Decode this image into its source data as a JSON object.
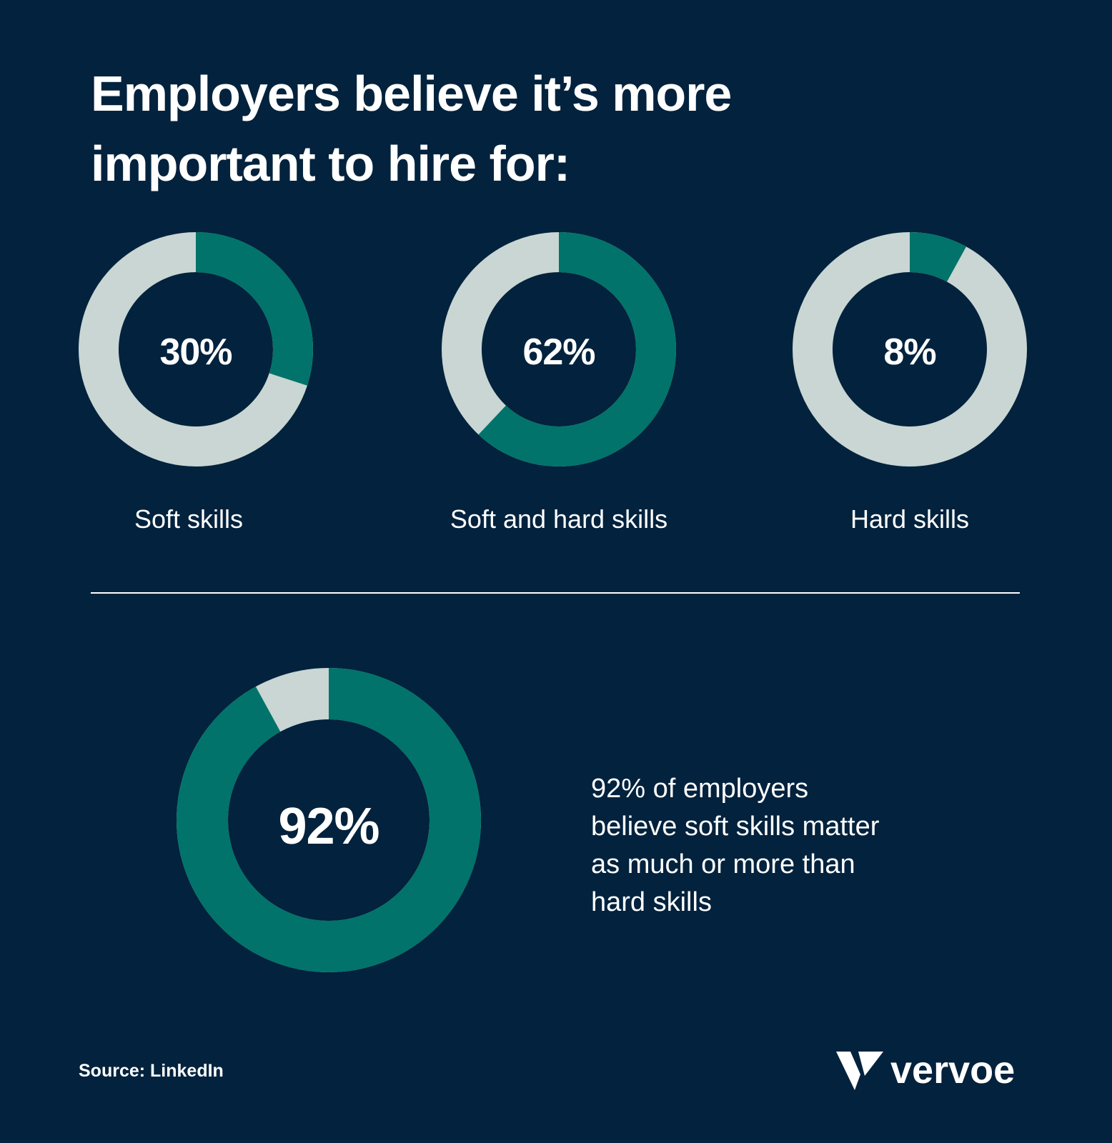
{
  "title": {
    "line1": "Employers believe it’s more",
    "line2": "important to hire for:"
  },
  "colors": {
    "background": "#02223d",
    "accent": "#01736a",
    "track": "#c9d6d3",
    "text": "#ffffff"
  },
  "chart_data": [
    {
      "type": "pie",
      "style": "donut",
      "label": "Soft skills",
      "value": 30,
      "value_text": "30%"
    },
    {
      "type": "pie",
      "style": "donut",
      "label": "Soft and hard skills",
      "value": 62,
      "value_text": "62%"
    },
    {
      "type": "pie",
      "style": "donut",
      "label": "Hard skills",
      "value": 8,
      "value_text": "8%"
    },
    {
      "type": "pie",
      "style": "donut",
      "label": "",
      "value": 92,
      "value_text": "92%"
    }
  ],
  "statement": {
    "line1": "92% of employers",
    "line2": "believe soft skills matter",
    "line3": "as much or more than",
    "line4": "hard skills"
  },
  "source": "Source: LinkedIn",
  "brand": {
    "name": "vervoe",
    "icon": "vervoe-logo-icon"
  }
}
